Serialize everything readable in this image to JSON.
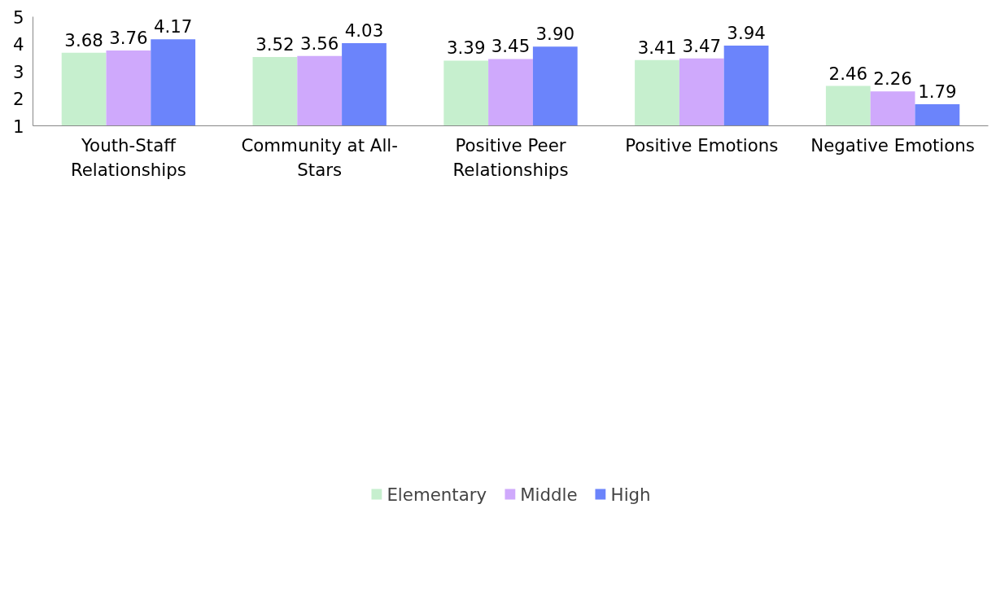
{
  "chart_data": {
    "type": "bar",
    "categories": [
      "Youth-Staff Relationships",
      "Community at All-Stars",
      "Positive Peer Relationships",
      "Positive Emotions",
      "Negative Emotions"
    ],
    "series": [
      {
        "name": "Elementary",
        "color": "#c6efce",
        "values": [
          3.68,
          3.52,
          3.39,
          3.41,
          2.46
        ],
        "value_labels": [
          "3.68",
          "3.52",
          "3.39",
          "3.41",
          "2.46"
        ]
      },
      {
        "name": "Middle",
        "color": "#cfa9fc",
        "values": [
          3.76,
          3.56,
          3.45,
          3.47,
          2.26
        ],
        "value_labels": [
          "3.76",
          "3.56",
          "3.45",
          "3.47",
          "2.26"
        ]
      },
      {
        "name": "High",
        "color": "#6b84fb",
        "values": [
          4.17,
          4.03,
          3.9,
          3.94,
          1.79
        ],
        "value_labels": [
          "4.17",
          "4.03",
          "3.90",
          "3.94",
          "1.79"
        ]
      }
    ],
    "ylim": [
      1,
      5
    ],
    "yticks": [
      1,
      2,
      3,
      4,
      5
    ],
    "grid": false,
    "legend": "bottom"
  }
}
